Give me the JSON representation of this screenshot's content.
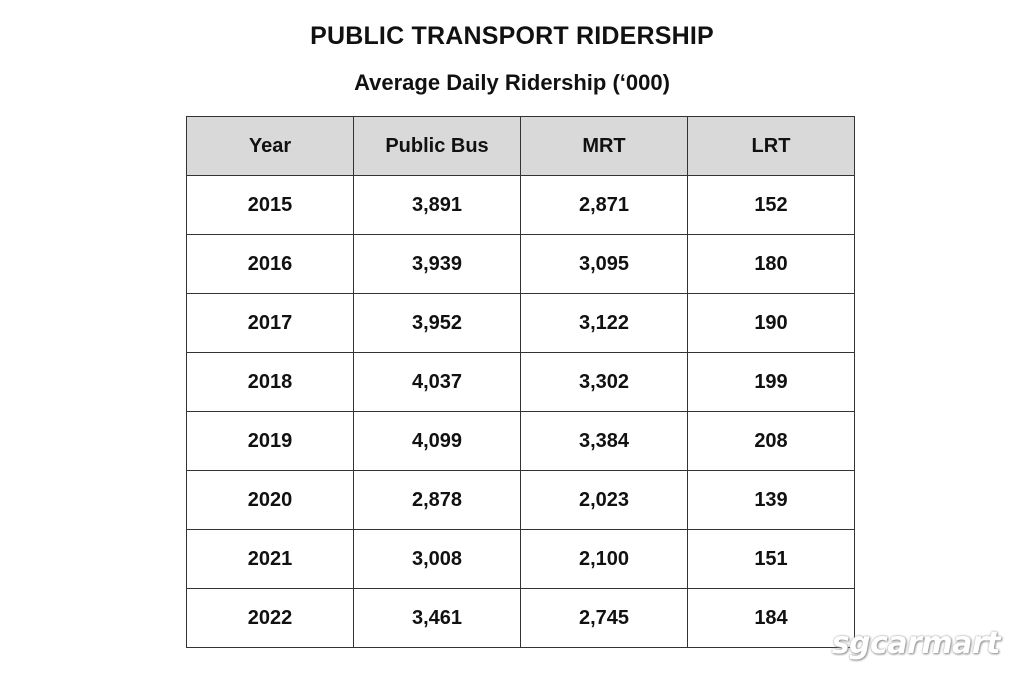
{
  "chart_data": {
    "type": "table",
    "title": "PUBLIC TRANSPORT RIDERSHIP",
    "subtitle": "Average Daily Ridership (‘000)",
    "columns": [
      "Year",
      "Public Bus",
      "MRT",
      "LRT"
    ],
    "rows": [
      [
        "2015",
        "3,891",
        "2,871",
        "152"
      ],
      [
        "2016",
        "3,939",
        "3,095",
        "180"
      ],
      [
        "2017",
        "3,952",
        "3,122",
        "190"
      ],
      [
        "2018",
        "4,037",
        "3,302",
        "199"
      ],
      [
        "2019",
        "4,099",
        "3,384",
        "208"
      ],
      [
        "2020",
        "2,878",
        "2,023",
        "139"
      ],
      [
        "2021",
        "3,008",
        "2,100",
        "151"
      ],
      [
        "2022",
        "3,461",
        "2,745",
        "184"
      ]
    ]
  },
  "watermark": "sgcarmart"
}
